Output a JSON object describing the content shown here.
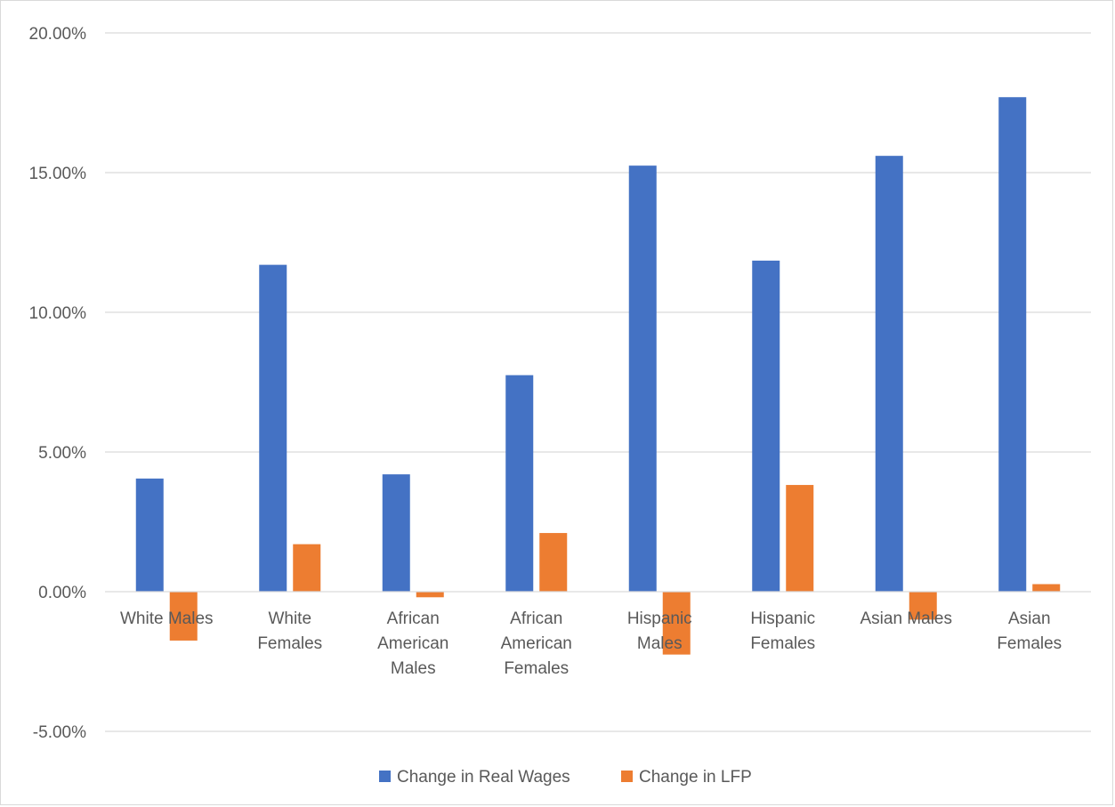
{
  "chart_data": {
    "type": "bar",
    "title": "",
    "xlabel": "",
    "ylabel": "",
    "categories": [
      [
        "White Males"
      ],
      [
        "White",
        "Females"
      ],
      [
        "African",
        "American",
        "Males"
      ],
      [
        "African",
        "American",
        "Females"
      ],
      [
        "Hispanic",
        "Males"
      ],
      [
        "Hispanic",
        "Females"
      ],
      [
        "Asian Males"
      ],
      [
        "Asian",
        "Females"
      ]
    ],
    "series": [
      {
        "name": "Change in Real Wages",
        "color": "#4472C4",
        "values": [
          4.05,
          11.7,
          4.2,
          7.75,
          15.25,
          11.85,
          15.6,
          17.7
        ]
      },
      {
        "name": "Change in LFP",
        "color": "#ED7D31",
        "values": [
          -1.75,
          1.7,
          -0.2,
          2.1,
          -2.25,
          3.82,
          -1.0,
          0.27
        ]
      }
    ],
    "ylim": [
      -5,
      20
    ],
    "yticks": [
      -5,
      0,
      5,
      10,
      15,
      20
    ],
    "ytick_labels": [
      "-5.00%",
      "0.00%",
      "5.00%",
      "10.00%",
      "15.00%",
      "20.00%"
    ],
    "grid": true,
    "legend_position": "bottom"
  }
}
